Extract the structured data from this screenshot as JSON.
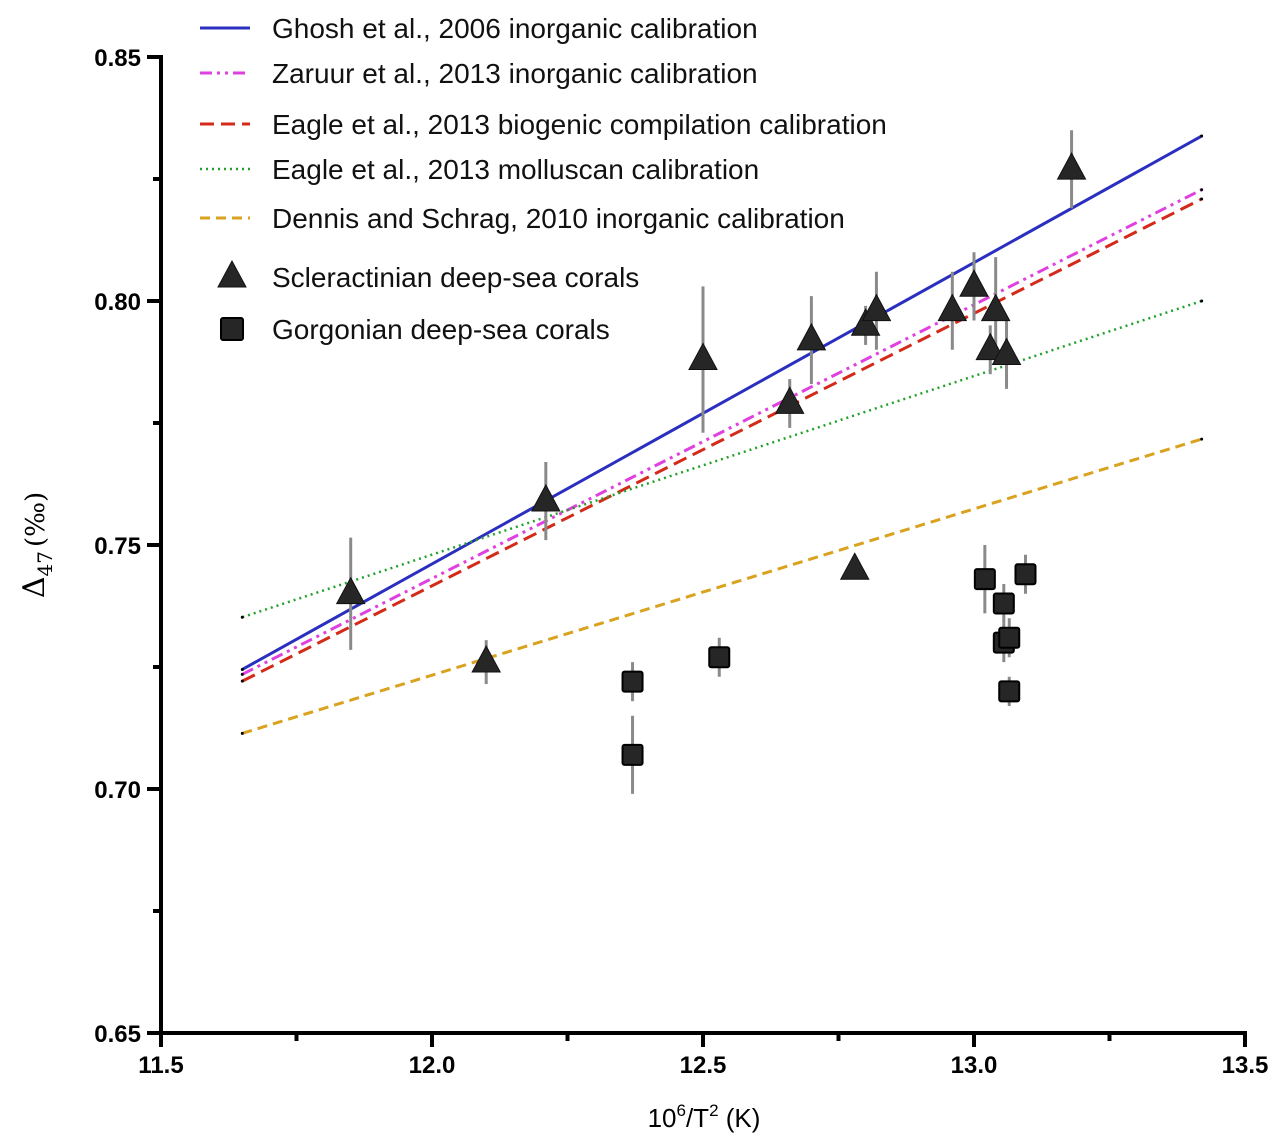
{
  "chart_data": {
    "type": "scatter",
    "xlabel": {
      "base": "10",
      "sup1": "6",
      "mid": "/T",
      "sup2": "2",
      "unit": " (K)"
    },
    "ylabel": {
      "delta": "Δ",
      "sub": "47",
      "unit": "(‰)"
    },
    "xlim": [
      11.5,
      13.5
    ],
    "ylim": [
      0.65,
      0.85
    ],
    "x_ticks": [
      "11.5",
      "12.0",
      "12.5",
      "13.0",
      "13.5"
    ],
    "y_ticks": [
      "0.65",
      "0.70",
      "0.75",
      "0.80",
      "0.85"
    ],
    "legend_position": "top-left",
    "calibrations": [
      {
        "name": "Ghosh et al., 2006 inorganic calibration",
        "color": "#2b2fbf",
        "style": "solid",
        "x": [
          11.65,
          13.42
        ],
        "y": [
          0.7245,
          0.8338
        ]
      },
      {
        "name": "Zaruur et al., 2013 inorganic calibration",
        "color": "#e040e0",
        "style": "dashdot",
        "x": [
          11.65,
          13.42
        ],
        "y": [
          0.7235,
          0.8228
        ]
      },
      {
        "name": "Eagle et al., 2013 biogenic compilation calibration",
        "color": "#d42a1a",
        "style": "dashed",
        "x": [
          11.65,
          13.42
        ],
        "y": [
          0.7221,
          0.8209
        ]
      },
      {
        "name": "Eagle et al., 2013 molluscan calibration",
        "color": "#22a02a",
        "style": "dotted",
        "x": [
          11.65,
          13.42
        ],
        "y": [
          0.7352,
          0.8
        ]
      },
      {
        "name": "Dennis and Schrag, 2010 inorganic calibration",
        "color": "#d9a21f",
        "style": "longdash",
        "x": [
          11.65,
          13.42
        ],
        "y": [
          0.7114,
          0.7717
        ]
      }
    ],
    "series": [
      {
        "name": "Scleractinian deep-sea corals",
        "marker": "triangle",
        "points": [
          {
            "x": 11.85,
            "y": 0.74,
            "err": 0.0115
          },
          {
            "x": 12.1,
            "y": 0.726,
            "err": 0.0045
          },
          {
            "x": 12.21,
            "y": 0.759,
            "err": 0.008
          },
          {
            "x": 12.5,
            "y": 0.788,
            "err": 0.015
          },
          {
            "x": 12.66,
            "y": 0.779,
            "err": 0.005
          },
          {
            "x": 12.7,
            "y": 0.792,
            "err": 0.009
          },
          {
            "x": 12.78,
            "y": 0.745,
            "err": 0
          },
          {
            "x": 12.8,
            "y": 0.795,
            "err": 0.004
          },
          {
            "x": 12.82,
            "y": 0.798,
            "err": 0.008
          },
          {
            "x": 12.96,
            "y": 0.798,
            "err": 0.008
          },
          {
            "x": 13.0,
            "y": 0.803,
            "err": 0.007
          },
          {
            "x": 13.03,
            "y": 0.79,
            "err": 0.005
          },
          {
            "x": 13.04,
            "y": 0.798,
            "err": 0.011
          },
          {
            "x": 13.06,
            "y": 0.789,
            "err": 0.007
          },
          {
            "x": 13.18,
            "y": 0.827,
            "err": 0.008
          }
        ]
      },
      {
        "name": "Gorgonian deep-sea corals",
        "marker": "square",
        "points": [
          {
            "x": 12.37,
            "y": 0.722,
            "err": 0.004
          },
          {
            "x": 12.37,
            "y": 0.707,
            "err": 0.008
          },
          {
            "x": 12.53,
            "y": 0.727,
            "err": 0.004
          },
          {
            "x": 13.02,
            "y": 0.743,
            "err": 0.007
          },
          {
            "x": 13.055,
            "y": 0.738,
            "err": 0.004
          },
          {
            "x": 13.055,
            "y": 0.73,
            "err": 0.004
          },
          {
            "x": 13.065,
            "y": 0.731,
            "err": 0.004
          },
          {
            "x": 13.065,
            "y": 0.72,
            "err": 0.003
          },
          {
            "x": 13.095,
            "y": 0.744,
            "err": 0.004
          }
        ]
      }
    ]
  }
}
